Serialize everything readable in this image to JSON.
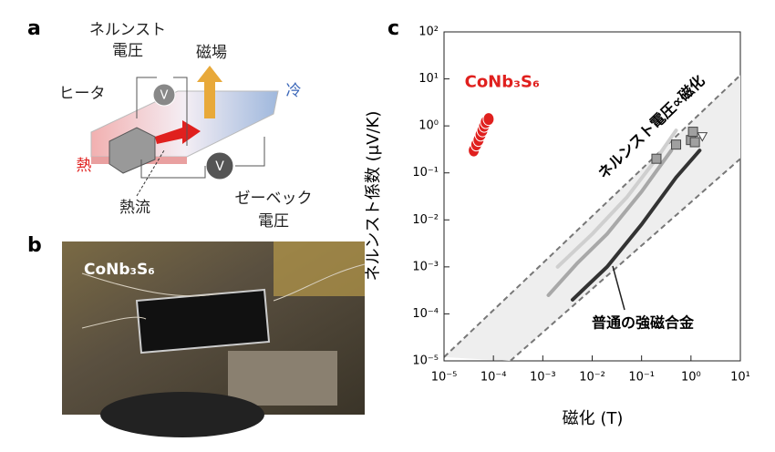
{
  "panel_a": {
    "label": "a",
    "nernst_voltage": [
      "ネルンスト",
      "電圧"
    ],
    "magnetic_field": "磁場",
    "cold": "冷",
    "heater": "ヒータ",
    "heat": "熱",
    "heat_flow": "熱流",
    "seebeck_voltage": [
      "ゼーベック",
      "電圧"
    ],
    "voltmeter": "V"
  },
  "panel_b": {
    "label": "b",
    "sample": "CoNb₃S₆"
  },
  "chart_data": {
    "type": "scatter",
    "panel_label": "c",
    "xlabel": "磁化 (T)",
    "ylabel": "ネルンスト係数 (μV/K)",
    "log_x": true,
    "log_y": true,
    "xlim": [
      1e-05,
      10
    ],
    "ylim": [
      1e-05,
      100
    ],
    "xticks": [
      {
        "value": 1e-05,
        "label": "10⁻⁵"
      },
      {
        "value": 0.0001,
        "label": "10⁻⁴"
      },
      {
        "value": 0.001,
        "label": "10⁻³"
      },
      {
        "value": 0.01,
        "label": "10⁻²"
      },
      {
        "value": 0.1,
        "label": "10⁻¹"
      },
      {
        "value": 1,
        "label": "10⁰"
      },
      {
        "value": 10,
        "label": "10¹"
      }
    ],
    "yticks": [
      {
        "value": 1e-05,
        "label": "10⁻⁵"
      },
      {
        "value": 0.0001,
        "label": "10⁻⁴"
      },
      {
        "value": 0.001,
        "label": "10⁻³"
      },
      {
        "value": 0.01,
        "label": "10⁻²"
      },
      {
        "value": 0.1,
        "label": "10⁻¹"
      },
      {
        "value": 1,
        "label": "10⁰"
      },
      {
        "value": 10,
        "label": "10¹"
      },
      {
        "value": 100,
        "label": "10²"
      }
    ],
    "reference_lines": [
      {
        "x": [
          1e-05,
          10
        ],
        "values": [
          1.2e-05,
          12
        ],
        "color": "#777777"
      },
      {
        "x": [
          0.00022,
          10
        ],
        "values": [
          1e-05,
          0.2
        ],
        "color": "#777777"
      }
    ],
    "reference_annotation": "ネルンスト電圧∝磁化",
    "series_annotation": "普通の強磁合金",
    "series": [
      {
        "name": "CoNb₃S₆",
        "color": "#e0201e",
        "mode": "markers",
        "marker": "circle",
        "x": [
          4e-05,
          4.5e-05,
          5e-05,
          5.5e-05,
          6e-05,
          6.5e-05,
          7e-05,
          8e-05
        ],
        "values": [
          0.3,
          0.4,
          0.5,
          0.65,
          0.8,
          1.0,
          1.2,
          1.4
        ]
      },
      {
        "color": "#a0a0a0",
        "mode": "markers",
        "marker": "square",
        "x": [
          0.2,
          0.5,
          1.0,
          1.1,
          1.2
        ],
        "values": [
          0.2,
          0.4,
          0.5,
          0.75,
          0.45
        ]
      },
      {
        "color": "#ffffff",
        "mode": "markers",
        "marker": "triangle",
        "x": [
          1.7
        ],
        "values": [
          0.6
        ]
      },
      {
        "color": "#cfcfcf",
        "mode": "line",
        "x": [
          0.002,
          0.01,
          0.05,
          0.2,
          0.5
        ],
        "values": [
          0.001,
          0.005,
          0.03,
          0.2,
          0.8
        ]
      },
      {
        "color": "#a8a8a8",
        "mode": "line",
        "x": [
          0.0013,
          0.005,
          0.02,
          0.1,
          0.4
        ],
        "values": [
          0.00025,
          0.0012,
          0.005,
          0.04,
          0.3
        ]
      },
      {
        "color": "#333333",
        "mode": "line",
        "x": [
          0.004,
          0.02,
          0.1,
          0.5,
          1.5
        ],
        "values": [
          0.0002,
          0.001,
          0.008,
          0.08,
          0.3
        ]
      }
    ]
  }
}
